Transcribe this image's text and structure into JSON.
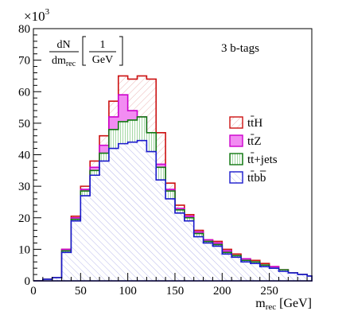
{
  "chart_data": {
    "type": "bar",
    "histtype": "stacked-step",
    "y_multiplier_label": "×10",
    "y_multiplier_exp": "3",
    "y_axis_label": {
      "numerator": "dN",
      "denominator": "dm",
      "denominator_sub": "rec",
      "unit_numerator": "1",
      "unit_denominator": "GeV"
    },
    "x_axis_label": {
      "main": "m",
      "sub": "rec",
      "unit": "[GeV]"
    },
    "annotation": "3 b-tags",
    "xlim": [
      0,
      295
    ],
    "ylim": [
      0,
      80
    ],
    "x_ticks": [
      0,
      50,
      100,
      150,
      200,
      250
    ],
    "y_ticks": [
      0,
      10,
      20,
      30,
      40,
      50,
      60,
      70,
      80
    ],
    "bin_edges": [
      0,
      10,
      20,
      30,
      40,
      50,
      60,
      70,
      80,
      90,
      100,
      110,
      120,
      130,
      140,
      150,
      160,
      170,
      180,
      190,
      200,
      210,
      220,
      230,
      240,
      250,
      260,
      270,
      280,
      290,
      295
    ],
    "series": [
      {
        "name": "tt̄H",
        "legend_main": "tt",
        "legend_tail": "H",
        "line_color": "#cc1111",
        "fill_color": "#ffffff",
        "fill_style": "red-hatch",
        "values": [
          0,
          0.5,
          1,
          10,
          20.5,
          30,
          38,
          46,
          57,
          65,
          64,
          65,
          64,
          47,
          31,
          24,
          21,
          16,
          13,
          12.5,
          10,
          8.5,
          7,
          6.5,
          5.5,
          4.5,
          3.5,
          2.5,
          2,
          1.5
        ]
      },
      {
        "name": "tt̄Z",
        "legend_main": "tt",
        "legend_tail": "Z",
        "line_color": "#cc00cc",
        "fill_color": "#f28cf2",
        "fill_style": "solid",
        "values": [
          0,
          0.5,
          1,
          10,
          20,
          29,
          36,
          43,
          52,
          59,
          54,
          52,
          47,
          37,
          29,
          23,
          20.5,
          15.5,
          13,
          12,
          9.5,
          8,
          7,
          6,
          5,
          4.5,
          3.5,
          2.5,
          2,
          1.5
        ]
      },
      {
        "name": "tt̄+jets",
        "legend_main": "tt",
        "legend_tail": "+jets",
        "line_color": "#117711",
        "fill_color": "#ffffff",
        "fill_style": "green-hatch",
        "values": [
          0,
          0.5,
          1,
          9.5,
          19.5,
          28.5,
          35,
          40.5,
          48,
          50.5,
          51,
          52,
          47,
          36,
          28.5,
          22.5,
          20,
          15,
          12.5,
          11.5,
          9,
          8,
          6.5,
          6,
          5,
          4,
          3.5,
          2.5,
          2,
          1.5
        ]
      },
      {
        "name": "tt̄bb̄",
        "legend_main": "tt",
        "legend_tail": "bb",
        "line_color": "#1a1acc",
        "fill_color": "#ffffff",
        "fill_style": "blue-hatch",
        "values": [
          0,
          0.5,
          1,
          9,
          19,
          27,
          33.5,
          38,
          42,
          43.5,
          44,
          44.5,
          41,
          32,
          26,
          21.5,
          19,
          14,
          12,
          11,
          8.5,
          7.5,
          6,
          5.5,
          4.5,
          4,
          3,
          2.5,
          2,
          1.5
        ]
      }
    ]
  }
}
